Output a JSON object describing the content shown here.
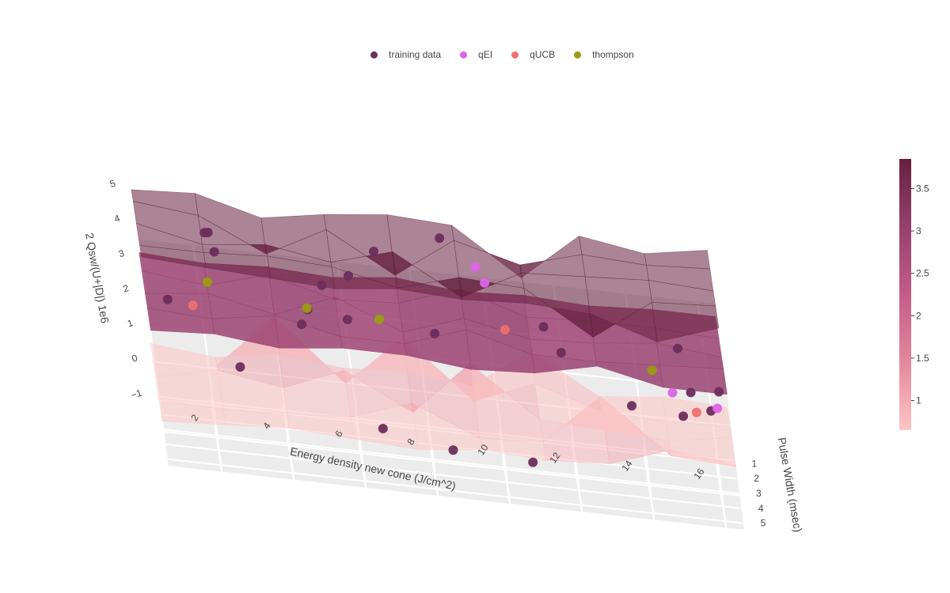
{
  "chart_data": {
    "type": "scatter",
    "title": "",
    "xlabel": "Energy density new cone (J/cm^2)",
    "ylabel": "Pulse Width (msec)",
    "zlabel": "2 Qsw/(U+|D|) 1e6",
    "x_range": [
      0.5,
      16.5
    ],
    "y_range": [
      0.5,
      5.5
    ],
    "z_range": [
      -1,
      5.5
    ],
    "x_ticks": [
      "2",
      "4",
      "6",
      "8",
      "10",
      "12",
      "14",
      "16"
    ],
    "y_ticks": [
      "1",
      "2",
      "3",
      "4",
      "5"
    ],
    "z_ticks": [
      "−1",
      "0",
      "1",
      "2",
      "3",
      "4",
      "5"
    ],
    "legend_position": "top-center",
    "grid": true,
    "colorbar": {
      "ticks": [
        "1",
        "1.5",
        "2",
        "2.5",
        "3",
        "3.5"
      ],
      "range": [
        0.65,
        3.85
      ],
      "colors": [
        "#fdc6c4",
        "#e3889c",
        "#c45c88",
        "#96406f",
        "#66203f"
      ]
    },
    "surfaces": [
      {
        "role": "upper",
        "z": [
          [
            4.8,
            4.9,
            4.4,
            4.7,
            4.9,
            4.8,
            3.5,
            4.9,
            4.6,
            4.9
          ],
          [
            5.0,
            4.8,
            3.9,
            4.8,
            3.7,
            4.9,
            4.4,
            4.9,
            4.8,
            4.9
          ],
          [
            4.9,
            4.5,
            4.7,
            4.4,
            4.9,
            3.8,
            4.7,
            4.8,
            4.9,
            4.8
          ],
          [
            4.8,
            4.8,
            4.9,
            4.8,
            4.4,
            4.9,
            4.8,
            3.6,
            4.8,
            4.9
          ],
          [
            5.0,
            4.9,
            4.8,
            4.7,
            4.9,
            4.8,
            4.9,
            4.8,
            4.2,
            4.8
          ]
        ]
      },
      {
        "role": "mean",
        "z": [
          [
            3.0,
            2.9,
            3.0,
            2.9,
            3.1,
            2.9,
            3.0,
            2.9,
            3.0,
            3.0
          ],
          [
            3.0,
            2.8,
            3.3,
            2.8,
            2.9,
            3.5,
            2.9,
            3.0,
            3.0,
            2.9
          ],
          [
            2.9,
            3.1,
            2.7,
            3.4,
            2.6,
            3.2,
            2.8,
            2.9,
            3.1,
            2.9
          ],
          [
            3.0,
            2.9,
            3.2,
            2.8,
            2.8,
            3.4,
            2.9,
            2.9,
            3.0,
            3.1
          ],
          [
            2.9,
            3.0,
            2.8,
            3.0,
            3.0,
            2.8,
            2.9,
            3.3,
            2.9,
            2.9
          ]
        ]
      },
      {
        "role": "lower",
        "z": [
          [
            0.4,
            0.2,
            0.5,
            0.3,
            0.4,
            0.2,
            1.4,
            0.3,
            0.5,
            0.4
          ],
          [
            0.3,
            0.5,
            2.1,
            0.4,
            1.9,
            0.3,
            1.0,
            0.4,
            0.3,
            0.4
          ],
          [
            0.5,
            0.9,
            0.6,
            1.3,
            0.3,
            1.9,
            0.5,
            0.4,
            0.3,
            0.6
          ],
          [
            0.4,
            0.3,
            0.4,
            0.5,
            1.1,
            0.3,
            0.4,
            1.9,
            0.4,
            0.3
          ],
          [
            0.3,
            0.4,
            0.5,
            0.4,
            0.3,
            0.5,
            0.4,
            0.5,
            1.1,
            0.9
          ]
        ]
      }
    ],
    "series": [
      {
        "name": "training data",
        "color": "#6b2d5c",
        "points": [
          [
            1.1,
            4.2,
            3.3
          ],
          [
            2.4,
            1.0,
            4.0
          ],
          [
            2.5,
            1.2,
            4.1
          ],
          [
            2.6,
            2.0,
            3.9
          ],
          [
            5.0,
            4.3,
            3.5
          ],
          [
            5.5,
            3.0,
            3.7
          ],
          [
            2.9,
            4.5,
            1.7
          ],
          [
            4.8,
            2.3,
            2.2
          ],
          [
            6.1,
            3.5,
            3.0
          ],
          [
            6.7,
            4.8,
            0.5
          ],
          [
            6.3,
            1.2,
            3.3
          ],
          [
            7.1,
            1.0,
            4.0
          ],
          [
            8.6,
            4.8,
            0.1
          ],
          [
            8.5,
            3.8,
            3.0
          ],
          [
            9.0,
            1.0,
            4.6
          ],
          [
            11.6,
            2.5,
            3.0
          ],
          [
            12.0,
            3.2,
            2.6
          ],
          [
            10.8,
            4.8,
            0.0
          ],
          [
            13.8,
            3.0,
            1.2
          ],
          [
            15.2,
            4.5,
            1.7
          ],
          [
            16.0,
            4.4,
            1.9
          ],
          [
            15.5,
            4.0,
            2.2
          ],
          [
            15.3,
            2.5,
            2.8
          ],
          [
            16.3,
            3.5,
            2.1
          ]
        ]
      },
      {
        "name": "qEI",
        "color": "#dd65e8",
        "points": [
          [
            9.9,
            2.0,
            4.3
          ],
          [
            10.1,
            2.3,
            4.0
          ],
          [
            15.0,
            2.5,
            1.5
          ],
          [
            16.2,
            3.0,
            1.4
          ]
        ]
      },
      {
        "name": "qUCB",
        "color": "#ef706e",
        "points": [
          [
            1.8,
            3.0,
            2.7
          ],
          [
            10.5,
            3.0,
            3.0
          ],
          [
            15.6,
            3.2,
            1.3
          ]
        ]
      },
      {
        "name": "thompson",
        "color": "#9c9b10",
        "points": [
          [
            2.3,
            2.0,
            3.0
          ],
          [
            5.0,
            2.8,
            2.9
          ],
          [
            7.0,
            3.0,
            2.9
          ],
          [
            14.5,
            3.0,
            2.3
          ]
        ]
      }
    ]
  }
}
